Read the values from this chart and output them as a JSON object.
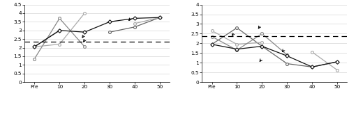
{
  "timepoints": [
    "Pre",
    "10",
    "20",
    "30",
    "40",
    "50"
  ],
  "x_numeric": [
    0,
    1,
    2,
    3,
    4,
    5
  ],
  "cutoff": 2.36,
  "left": {
    "ylim": [
      0,
      4.5
    ],
    "yticks": [
      0,
      0.5,
      1.0,
      1.5,
      2.0,
      2.5,
      3.0,
      3.5,
      4.0,
      4.5
    ],
    "series": {
      "Julia": [
        2.05,
        3.0,
        null,
        2.9,
        3.2,
        3.75
      ],
      "Linda": [
        2.05,
        2.2,
        4.0,
        null,
        3.4,
        3.75
      ],
      "James": [
        1.35,
        3.7,
        2.05,
        null,
        null,
        null
      ],
      "Simon": [
        2.05,
        3.0,
        2.9,
        3.5,
        3.7,
        3.75
      ]
    },
    "colors": {
      "Julia": "#666666",
      "Linda": "#aaaaaa",
      "James": "#888888",
      "Simon": "#111111"
    },
    "markers": {
      "Julia": "o",
      "Linda": "o",
      "James": "o",
      "Simon": "D"
    },
    "arrows": [
      {
        "xt": 2.05,
        "yt": 2.55,
        "xa": 1.9,
        "ya": 2.2
      },
      {
        "xt": 2.0,
        "yt": 2.78,
        "xa": 1.85,
        "ya": 2.45
      },
      {
        "xt": 3.85,
        "yt": 3.72,
        "xa": 3.7,
        "ya": 3.45
      }
    ]
  },
  "right": {
    "ylim": [
      0,
      4.0
    ],
    "yticks": [
      0,
      0.5,
      1.0,
      1.5,
      2.0,
      2.5,
      3.0,
      3.5,
      4.0
    ],
    "series": {
      "Sofia": [
        1.95,
        2.8,
        1.85,
        0.95,
        0.78,
        1.05
      ],
      "Joseph": [
        2.65,
        1.95,
        2.05,
        null,
        1.55,
        0.62
      ],
      "Caitlin": [
        2.35,
        1.65,
        2.5,
        1.4,
        null,
        null
      ],
      "Luke": [
        1.95,
        1.7,
        1.85,
        1.35,
        0.78,
        1.05
      ]
    },
    "colors": {
      "Sofia": "#666666",
      "Joseph": "#aaaaaa",
      "Caitlin": "#888888",
      "Luke": "#111111"
    },
    "markers": {
      "Sofia": "o",
      "Joseph": "o",
      "Caitlin": "o",
      "Luke": "D"
    },
    "arrows": [
      {
        "xt": 0.9,
        "yt": 2.58,
        "xa": 0.75,
        "ya": 2.28
      },
      {
        "xt": 1.95,
        "yt": 2.95,
        "xa": 1.8,
        "ya": 2.65
      },
      {
        "xt": 2.0,
        "yt": 1.22,
        "xa": 1.85,
        "ya": 0.95
      },
      {
        "xt": 2.9,
        "yt": 1.72,
        "xa": 2.75,
        "ya": 1.45
      }
    ]
  }
}
